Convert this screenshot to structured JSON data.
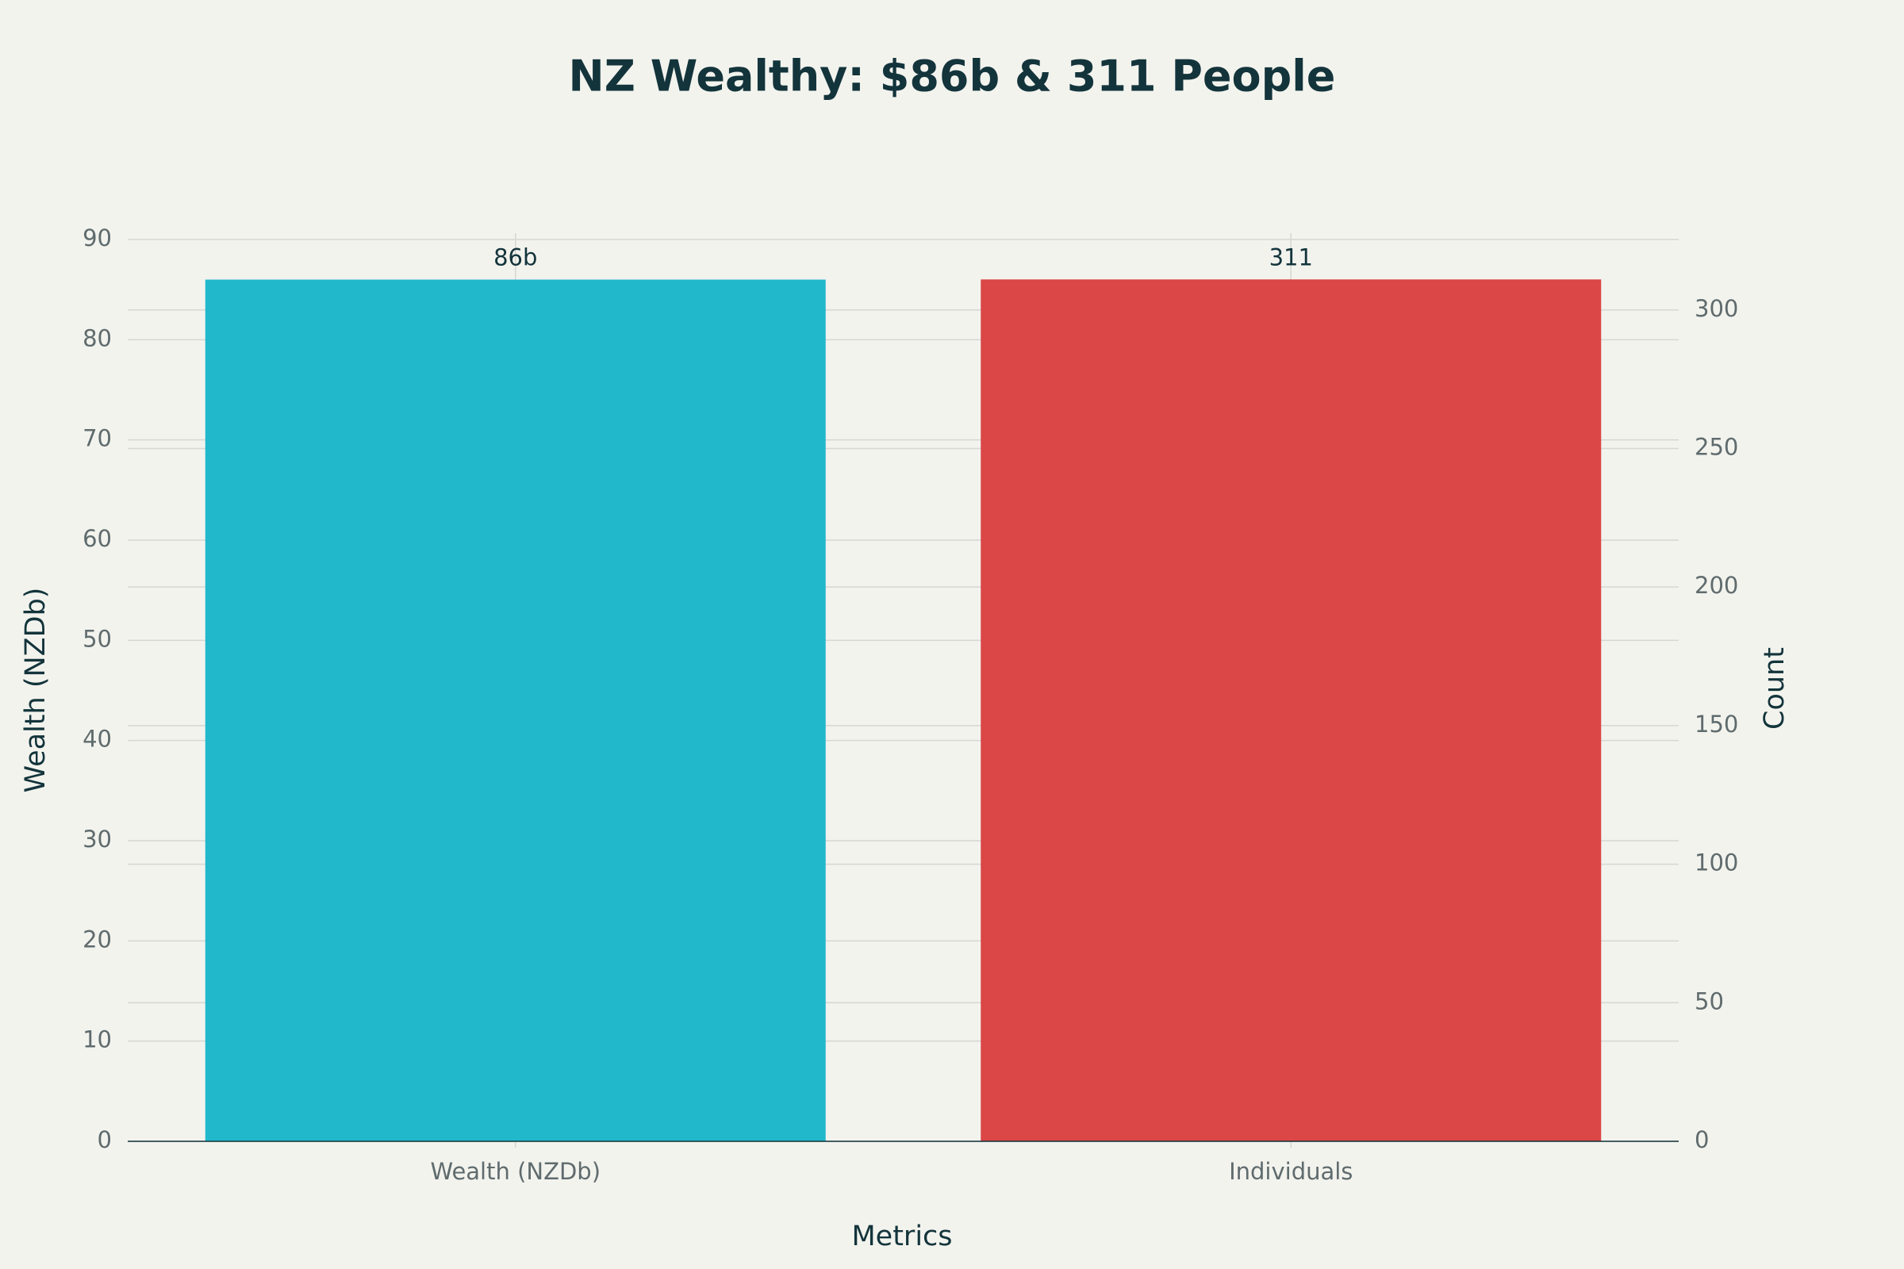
{
  "chart_data": {
    "type": "bar",
    "title": "NZ Wealthy: $86b & 311 People",
    "x_label": "Metrics",
    "y_label": "Wealth (NZDb)",
    "y2_label": "Count",
    "categories": [
      "Wealth (NZDb)",
      "Individuals"
    ],
    "series": [
      {
        "color": "#21b8cc",
        "values": [
          86,
          null
        ],
        "value_labels": [
          "86b",
          null
        ]
      },
      {
        "color": "#db4646",
        "axis": "y2",
        "values": [
          null,
          311
        ]
      }
    ],
    "ylim": [
      0,
      90
    ],
    "yticks": [
      0,
      10,
      20,
      30,
      40,
      50,
      60,
      70,
      80,
      90
    ],
    "y2lim": [
      0,
      325.4
    ],
    "y2ticks": [
      0,
      50,
      100,
      150,
      200,
      250,
      300
    ],
    "grid": true
  }
}
